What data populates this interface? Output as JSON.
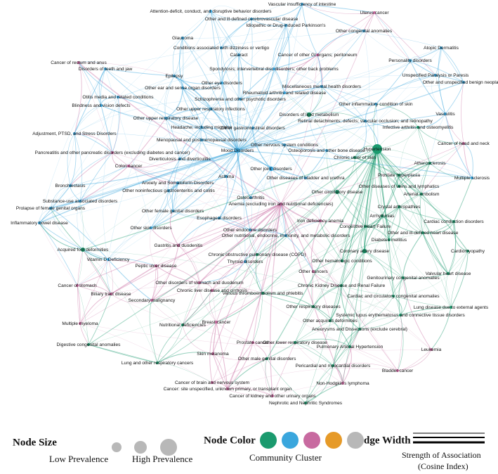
{
  "nodes": [
    {
      "label": "Vascular insufficiency of intestine",
      "color": "#3aa6dd"
    },
    {
      "label": "Attention-deficit, conduct, and disruptive behavior disorders",
      "color": "#3aa6dd"
    },
    {
      "label": "Uterus cancer",
      "color": "#c86aa0"
    },
    {
      "label": "Other and ill-defined cerebrovascular disease",
      "color": "#3aa6dd"
    },
    {
      "label": "Idiopathic or Drug-induced Parkinson's",
      "color": "#3aa6dd"
    },
    {
      "label": "Other congenital anomalies",
      "color": "#3aa6dd"
    },
    {
      "label": "Glaucoma",
      "color": "#3aa6dd"
    },
    {
      "label": "Conditions associated with dizziness or vertigo",
      "color": "#3aa6dd"
    },
    {
      "label": "Cancer of rectum and anus",
      "color": "#c86aa0"
    },
    {
      "label": "Atopic Dermatitis",
      "color": "#3aa6dd"
    },
    {
      "label": "Cataract",
      "color": "#3aa6dd"
    },
    {
      "label": "Cancer of other GI organs; peritoneum",
      "color": "#c86aa0"
    },
    {
      "label": "Personality disorders",
      "color": "#3aa6dd"
    },
    {
      "label": "Disorders of teeth and jaw",
      "color": "#3aa6dd"
    },
    {
      "label": "Spondylosis; intervertebral disc disorders; other back problems",
      "color": "#3aa6dd"
    },
    {
      "label": "Unspecified Paralysis or Paresis",
      "color": "#3aa6dd"
    },
    {
      "label": "Other and unspecified benign neoplasm",
      "color": "#3aa6dd"
    },
    {
      "label": "Epilepsy",
      "color": "#3aa6dd"
    },
    {
      "label": "Other eye disorders",
      "color": "#3aa6dd"
    },
    {
      "label": "Other ear and sense organ disorders",
      "color": "#3aa6dd"
    },
    {
      "label": "Miscellaneous mental health disorders",
      "color": "#3aa6dd"
    },
    {
      "label": "Rheumatoid arthritis and related disease",
      "color": "#3aa6dd"
    },
    {
      "label": "Otitis media and related conditions",
      "color": "#3aa6dd"
    },
    {
      "label": "Schizophrenia and other psychotic disorders",
      "color": "#3aa6dd"
    },
    {
      "label": "Blindness and vision defects",
      "color": "#3aa6dd"
    },
    {
      "label": "Other inflammatory condition of skin",
      "color": "#3aa6dd"
    },
    {
      "label": "Other upper respiratory infections",
      "color": "#3aa6dd"
    },
    {
      "label": "Disorders of lipid metabolism",
      "color": "#1b9a6e"
    },
    {
      "label": "Other upper respiratory disease",
      "color": "#3aa6dd"
    },
    {
      "label": "Retinal detachments; defects; vascular occlusion; and retinopathy",
      "color": "#3aa6dd"
    },
    {
      "label": "Vasculitis",
      "color": "#3aa6dd"
    },
    {
      "label": "Headache; including migraine",
      "color": "#3aa6dd"
    },
    {
      "label": "Infective arthritis and osteomyelitis",
      "color": "#1b9a6e"
    },
    {
      "label": "Other gastrointestinal disorders",
      "color": "#3aa6dd"
    },
    {
      "label": "Adjustment, PTSD, and Stress Disorders",
      "color": "#3aa6dd"
    },
    {
      "label": "Menopausal and postmenopausal disorders",
      "color": "#3aa6dd"
    },
    {
      "label": "Other nervous system conditions",
      "color": "#3aa6dd"
    },
    {
      "label": "Cancer of head and neck",
      "color": "#c86aa0"
    },
    {
      "label": "Pancreatitis and other pancreatic disorders (excluding diabetes and cancer)",
      "color": "#c86aa0"
    },
    {
      "label": "Mood Disorders",
      "color": "#3aa6dd"
    },
    {
      "label": "Osteoporosis and other bone disease",
      "color": "#3aa6dd"
    },
    {
      "label": "Hypertension",
      "color": "#1b9a6e"
    },
    {
      "label": "Diverticulosis and diverticulitis",
      "color": "#3aa6dd"
    },
    {
      "label": "Chronic ulcer of skin",
      "color": "#1b9a6e"
    },
    {
      "label": "Colon cancer",
      "color": "#c86aa0"
    },
    {
      "label": "Other joint disorders",
      "color": "#3aa6dd"
    },
    {
      "label": "Atherosclerosis",
      "color": "#1b9a6e"
    },
    {
      "label": "Asthma",
      "color": "#3aa6dd"
    },
    {
      "label": "Other diseases of bladder and urethra",
      "color": "#3aa6dd"
    },
    {
      "label": "Prostate hyperplasia",
      "color": "#1b9a6e"
    },
    {
      "label": "Anxiety and Somatoform Disorders",
      "color": "#3aa6dd"
    },
    {
      "label": "Bronchiectasis",
      "color": "#3aa6dd"
    },
    {
      "label": "Other diseases of veins and lymphatics",
      "color": "#1b9a6e"
    },
    {
      "label": "Multiple sclerosis",
      "color": "#3aa6dd"
    },
    {
      "label": "Other noninfectious gastroenteritis and colitis",
      "color": "#3aa6dd"
    },
    {
      "label": "Osteoarthritis",
      "color": "#3aa6dd"
    },
    {
      "label": "Other circulatory disease",
      "color": "#1b9a6e"
    },
    {
      "label": "Substance-use associated disorders",
      "color": "#3aa6dd"
    },
    {
      "label": "Arterial embolism",
      "color": "#1b9a6e"
    },
    {
      "label": "Anemia (excluding iron and nutritional deficiencies)",
      "color": "#c86aa0"
    },
    {
      "label": "Prolapse of female genital organs",
      "color": "#3aa6dd"
    },
    {
      "label": "Crystal arthropathies",
      "color": "#1b9a6e"
    },
    {
      "label": "Other female genital disorders",
      "color": "#3aa6dd"
    },
    {
      "label": "Arrhythmias",
      "color": "#1b9a6e"
    },
    {
      "label": "Esophageal disorders",
      "color": "#3aa6dd"
    },
    {
      "label": "Iron deficiency anemia",
      "color": "#c86aa0"
    },
    {
      "label": "Cardiac conduction disorders",
      "color": "#1b9a6e"
    },
    {
      "label": "Inflammatory bowel disease",
      "color": "#3aa6dd"
    },
    {
      "label": "Other skin disorders",
      "color": "#3aa6dd"
    },
    {
      "label": "Congestive Heart Failure",
      "color": "#1b9a6e"
    },
    {
      "label": "Other endocrine disorders",
      "color": "#3aa6dd"
    },
    {
      "label": "Other and ill-defined heart disease",
      "color": "#1b9a6e"
    },
    {
      "label": "Other nutritional, endocrine, immunity, and metabolic disorders",
      "color": "#3aa6dd"
    },
    {
      "label": "Diabetes mellitus",
      "color": "#1b9a6e"
    },
    {
      "label": "Acquired foot deformities",
      "color": "#1b9a6e"
    },
    {
      "label": "Gastritis and duodenitis",
      "color": "#c86aa0"
    },
    {
      "label": "Chronic obstructive pulmonary disease (COPD)",
      "color": "#1b9a6e"
    },
    {
      "label": "Coronary artery disease",
      "color": "#1b9a6e"
    },
    {
      "label": "Cardiomyopathy",
      "color": "#1b9a6e"
    },
    {
      "label": "Vitamin D Deficiency",
      "color": "#3aa6dd"
    },
    {
      "label": "Thyroid disorders",
      "color": "#3aa6dd"
    },
    {
      "label": "Other hematologic conditions",
      "color": "#1b9a6e"
    },
    {
      "label": "Peptic ulcer disease",
      "color": "#c86aa0"
    },
    {
      "label": "Other cancers",
      "color": "#c86aa0"
    },
    {
      "label": "Valvular heart disease",
      "color": "#1b9a6e"
    },
    {
      "label": "Genitourinary congenital anomalies",
      "color": "#1b9a6e"
    },
    {
      "label": "Cancer of stomach",
      "color": "#c86aa0"
    },
    {
      "label": "Other disorders of stomach and duodenum",
      "color": "#c86aa0"
    },
    {
      "label": "Chronic Kidney Disease and Renal Failure",
      "color": "#1b9a6e"
    },
    {
      "label": "Chronic liver disease and cirrhosis",
      "color": "#c86aa0"
    },
    {
      "label": "Biliary tract disease",
      "color": "#c86aa0"
    },
    {
      "label": "Venous thromboembolism and phlebitis",
      "color": "#1b9a6e"
    },
    {
      "label": "Cardiac and circulatory congenital anomalies",
      "color": "#1b9a6e"
    },
    {
      "label": "Secondary malignancy",
      "color": "#c86aa0"
    },
    {
      "label": "Other respiratory diseases",
      "color": "#1b9a6e"
    },
    {
      "label": "Lung disease due to external agents",
      "color": "#1b9a6e"
    },
    {
      "label": "Systemic lupus erythematosus and connective tissue disorders",
      "color": "#1b9a6e"
    },
    {
      "label": "Multiple myeloma",
      "color": "#c86aa0"
    },
    {
      "label": "Nutritional deficiencies",
      "color": "#1b9a6e"
    },
    {
      "label": "Other acquired deformities",
      "color": "#1b9a6e"
    },
    {
      "label": "Breast cancer",
      "color": "#c86aa0"
    },
    {
      "label": "Aneurysms and Dissections (exclude cerebral)",
      "color": "#1b9a6e"
    },
    {
      "label": "Digestive congenital anomalies",
      "color": "#1b9a6e"
    },
    {
      "label": "Prostate cancer",
      "color": "#c86aa0"
    },
    {
      "label": "Other lower respiratory disease",
      "color": "#1b9a6e"
    },
    {
      "label": "Pulmonary Arterial Hypertension",
      "color": "#1b9a6e"
    },
    {
      "label": "Leukemia",
      "color": "#c86aa0"
    },
    {
      "label": "Lung and other respiratory cancers",
      "color": "#1b9a6e"
    },
    {
      "label": "Skin melanoma",
      "color": "#c86aa0"
    },
    {
      "label": "Other male genital disorders",
      "color": "#1b9a6e"
    },
    {
      "label": "Pericardial and myocardial disorders",
      "color": "#1b9a6e"
    },
    {
      "label": "Bladder cancer",
      "color": "#c86aa0"
    },
    {
      "label": "Cancer of brain and nervous system",
      "color": "#c86aa0"
    },
    {
      "label": "Non-Hodgkin's lymphoma",
      "color": "#c86aa0"
    },
    {
      "label": "Cancer: site unspecified, unknown primary, or transplant organ",
      "color": "#c86aa0"
    },
    {
      "label": "Cancer of kidney and other urinary organs",
      "color": "#c86aa0"
    },
    {
      "label": "Nephrotic and Nephritic Syndromes",
      "color": "#1b9a6e"
    }
  ],
  "legend": {
    "node_size": {
      "title": "Node Size",
      "low": "Low Prevalence",
      "high": "High Prevalence",
      "color": "#b8b8b8"
    },
    "node_color": {
      "title": "Node Color",
      "caption": "Community Cluster",
      "colors": [
        "#1b9a6e",
        "#3aa6dd",
        "#c86aa0",
        "#e69a28",
        "#b8b8b8"
      ]
    },
    "edge_width": {
      "title": "Edge Width",
      "caption": "Strength of Association",
      "subcaption": "(Cosine Index)"
    }
  }
}
